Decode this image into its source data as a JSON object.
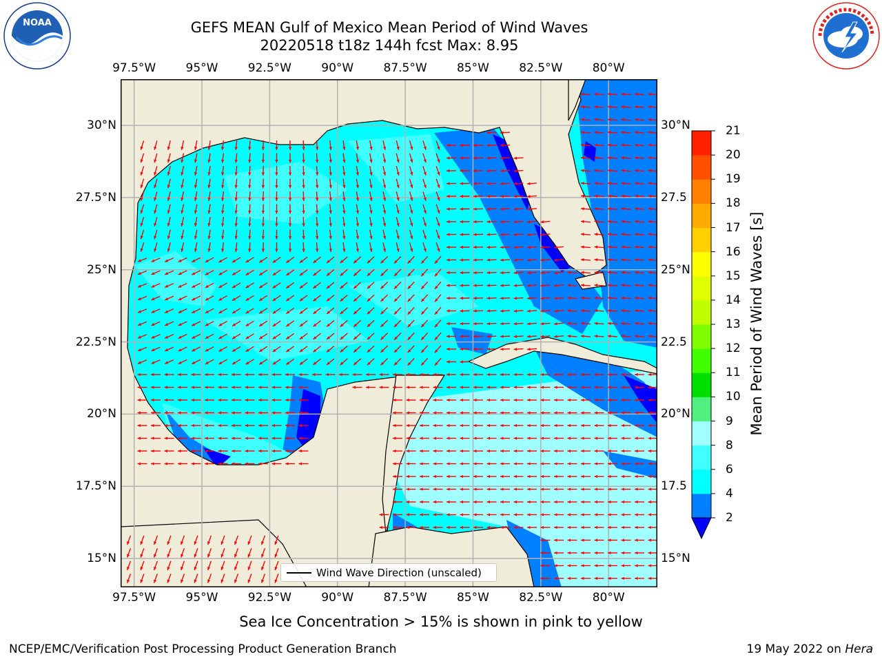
{
  "header": {
    "title_line1": "GEFS MEAN Gulf of Mexico Mean Period of Wind Waves",
    "title_line2": "20220518 t18z 144h fcst   Max: 8.95"
  },
  "logos": {
    "left_icon": "noaa-logo-icon",
    "left_text": "NOAA",
    "left_ring_text": "NATIONAL OCEANIC AND ATMOSPHERIC ADMINISTRATION · U.S. DEPARTMENT OF COMMERCE",
    "right_icon": "nws-logo-icon",
    "right_ring_text": "NATIONAL WEATHER SERVICE"
  },
  "map": {
    "lon_ticks": [
      "97.5°W",
      "95°W",
      "92.5°W",
      "90°W",
      "87.5°W",
      "85°W",
      "82.5°W",
      "80°W"
    ],
    "lat_ticks_left": [
      "30°N",
      "27.5°N",
      "25°N",
      "22.5°N",
      "20°N",
      "17.5°N",
      "15°N"
    ],
    "lat_ticks_right": [
      "30°N",
      "27.5",
      "25°N",
      "22.5",
      "20°N",
      "17.5",
      "15°N"
    ],
    "lon_values": [
      -97.5,
      -95,
      -92.5,
      -90,
      -87.5,
      -85,
      -82.5,
      -80
    ],
    "lat_values": [
      30,
      27.5,
      25,
      22.5,
      20,
      17.5,
      15
    ],
    "extent": {
      "lon_min": -98,
      "lon_max": -78.2,
      "lat_min": 14,
      "lat_max": 31.6
    },
    "land_color": "#efedda",
    "legend_label": "Wind Wave Direction (unscaled)",
    "arrow_color": "#ff0000"
  },
  "colorbar": {
    "title": "Mean Period of Wind Waves [s]",
    "levels": [
      "2",
      "4",
      "6",
      "8",
      "9",
      "10",
      "11",
      "12",
      "13",
      "14",
      "15",
      "16",
      "17",
      "18",
      "19",
      "20",
      "21"
    ],
    "colors": [
      "#0080ff",
      "#00ffff",
      "#40ffff",
      "#a0ffff",
      "#50f080",
      "#00e000",
      "#40ff00",
      "#80ff00",
      "#c0ff00",
      "#e0ff00",
      "#ffff00",
      "#ffd000",
      "#ffaa00",
      "#ff8000",
      "#ff5000",
      "#ff2000"
    ],
    "under_color": "#0000ff"
  },
  "footer": {
    "subtitle": "Sea Ice Concentration > 15% is shown in pink to yellow",
    "left": "NCEP/EMC/Verification Post Processing Product Generation Branch",
    "right_date": "19 May 2022 on",
    "right_host": "Hera"
  }
}
